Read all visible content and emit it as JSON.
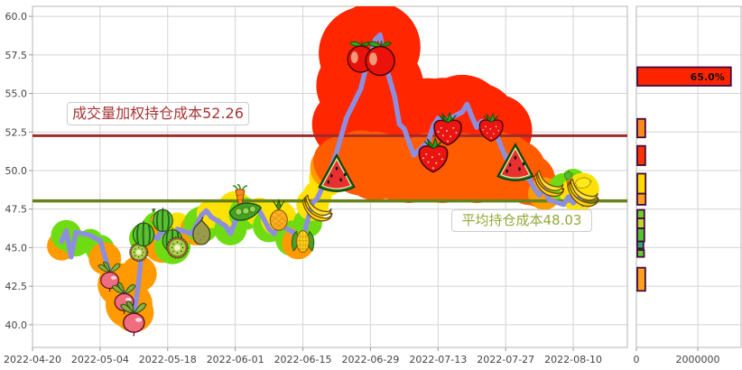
{
  "chart_data": {
    "type": "line",
    "title": "",
    "x_ticks": [
      "2022-04-20",
      "2022-05-04",
      "2022-05-18",
      "2022-06-01",
      "2022-06-15",
      "2022-06-29",
      "2022-07-13",
      "2022-07-27",
      "2022-08-10"
    ],
    "y_ticks": [
      "60.0",
      "57.5",
      "55.0",
      "52.5",
      "50.0",
      "47.5",
      "45.0",
      "42.5",
      "40.0"
    ],
    "axis": {
      "x_start": "2022-04-20",
      "x_span_days": 123.2,
      "ylim": [
        38.53,
        60.65
      ],
      "grid": true
    },
    "line_color": "#8e8ede",
    "price_series": [
      [
        "2022-04-26",
        45.4
      ],
      [
        "2022-04-27",
        46.1
      ],
      [
        "2022-04-28",
        44.4
      ],
      [
        "2022-04-29",
        46.0
      ],
      [
        "2022-05-02",
        45.8
      ],
      [
        "2022-05-03",
        45.6
      ],
      [
        "2022-05-04",
        45.5
      ],
      [
        "2022-05-05",
        44.4
      ],
      [
        "2022-05-06",
        43.4
      ],
      [
        "2022-05-09",
        42.0
      ],
      [
        "2022-05-10",
        41.3
      ],
      [
        "2022-05-11",
        40.6
      ],
      [
        "2022-05-12",
        42.8
      ],
      [
        "2022-05-13",
        46.0
      ],
      [
        "2022-05-16",
        45.6
      ],
      [
        "2022-05-17",
        46.4
      ],
      [
        "2022-05-18",
        45.4
      ],
      [
        "2022-05-19",
        45.8
      ],
      [
        "2022-05-20",
        46.2
      ],
      [
        "2022-05-23",
        45.9
      ],
      [
        "2022-05-24",
        46.5
      ],
      [
        "2022-05-25",
        47.1
      ],
      [
        "2022-05-26",
        47.4
      ],
      [
        "2022-05-27",
        47.0
      ],
      [
        "2022-05-30",
        46.4
      ],
      [
        "2022-05-31",
        45.9
      ],
      [
        "2022-06-01",
        46.7
      ],
      [
        "2022-06-02",
        47.8
      ],
      [
        "2022-06-03",
        47.2
      ],
      [
        "2022-06-06",
        47.4
      ],
      [
        "2022-06-07",
        46.8
      ],
      [
        "2022-06-08",
        46.2
      ],
      [
        "2022-06-09",
        45.9
      ],
      [
        "2022-06-10",
        46.5
      ],
      [
        "2022-06-13",
        46.0
      ],
      [
        "2022-06-14",
        45.2
      ],
      [
        "2022-06-15",
        45.6
      ],
      [
        "2022-06-16",
        46.8
      ],
      [
        "2022-06-17",
        47.9
      ],
      [
        "2022-06-18",
        48.2
      ],
      [
        "2022-06-20",
        49.6
      ],
      [
        "2022-06-21",
        50.3
      ],
      [
        "2022-06-22",
        51.2
      ],
      [
        "2022-06-23",
        52.3
      ],
      [
        "2022-06-24",
        53.4
      ],
      [
        "2022-06-27",
        55.3
      ],
      [
        "2022-06-28",
        56.6
      ],
      [
        "2022-06-29",
        57.5
      ],
      [
        "2022-06-30",
        58.5
      ],
      [
        "2022-07-01",
        58.8
      ],
      [
        "2022-07-02",
        57.0
      ],
      [
        "2022-07-04",
        54.8
      ],
      [
        "2022-07-05",
        53.0
      ],
      [
        "2022-07-06",
        52.7
      ],
      [
        "2022-07-07",
        51.8
      ],
      [
        "2022-07-08",
        51.0
      ],
      [
        "2022-07-11",
        51.9
      ],
      [
        "2022-07-12",
        52.9
      ],
      [
        "2022-07-13",
        53.4
      ],
      [
        "2022-07-14",
        53.0
      ],
      [
        "2022-07-15",
        53.3
      ],
      [
        "2022-07-18",
        53.8
      ],
      [
        "2022-07-19",
        54.3
      ],
      [
        "2022-07-20",
        53.5
      ],
      [
        "2022-07-21",
        52.8
      ],
      [
        "2022-07-22",
        53.2
      ],
      [
        "2022-07-25",
        52.4
      ],
      [
        "2022-07-26",
        51.6
      ],
      [
        "2022-07-27",
        50.9
      ],
      [
        "2022-07-28",
        50.2
      ],
      [
        "2022-07-29",
        49.9
      ],
      [
        "2022-08-01",
        49.4
      ],
      [
        "2022-08-02",
        48.8
      ],
      [
        "2022-08-03",
        48.4
      ],
      [
        "2022-08-04",
        48.8
      ],
      [
        "2022-08-05",
        48.1
      ],
      [
        "2022-08-08",
        47.8
      ],
      [
        "2022-08-09",
        48.3
      ],
      [
        "2022-08-10",
        47.9
      ],
      [
        "2022-08-11",
        48.2
      ],
      [
        "2022-08-12",
        47.8
      ]
    ],
    "cost_lines": [
      {
        "label": "成交量加权持仓成本52.26",
        "value": 52.26,
        "color": "#a83434",
        "line_color": "#9e2c2c",
        "line_width": 3
      },
      {
        "label": "平均持仓成本48.03",
        "value": 48.03,
        "color": "#93a83a",
        "line_color": "#66821a",
        "line_width": 3.5
      }
    ],
    "palette": {
      "green": "#6fdc13",
      "orange": "#ff9a00",
      "yellow": "#ffe205",
      "red": "#ff2600",
      "orangered": "#ff5c00"
    },
    "heat_blobs": [
      [
        "2022-04-26",
        45.1,
        16,
        "orange"
      ],
      [
        "2022-04-27",
        45.8,
        17,
        "green"
      ],
      [
        "2022-04-29",
        45.3,
        15,
        "green"
      ],
      [
        "2022-05-02",
        45.4,
        14,
        "green"
      ],
      [
        "2022-05-04",
        44.9,
        16,
        "green"
      ],
      [
        "2022-05-05",
        44.3,
        18,
        "orange"
      ],
      [
        "2022-05-08",
        42.6,
        24,
        "orange"
      ],
      [
        "2022-05-10",
        41.3,
        26,
        "orange"
      ],
      [
        "2022-05-11",
        40.8,
        22,
        "orange"
      ],
      [
        "2022-05-12",
        43.3,
        20,
        "orange"
      ],
      [
        "2022-05-13",
        45.6,
        16,
        "green"
      ],
      [
        "2022-05-16",
        46.3,
        18,
        "green"
      ],
      [
        "2022-05-17",
        45.3,
        22,
        "orange"
      ],
      [
        "2022-05-19",
        45.1,
        20,
        "green"
      ],
      [
        "2022-05-20",
        46.4,
        15,
        "yellow"
      ],
      [
        "2022-05-24",
        46.2,
        18,
        "orange"
      ],
      [
        "2022-05-25",
        46.5,
        20,
        "green"
      ],
      [
        "2022-05-27",
        47.2,
        16,
        "yellow"
      ],
      [
        "2022-05-31",
        46.2,
        18,
        "green"
      ],
      [
        "2022-06-01",
        47.5,
        20,
        "yellow"
      ],
      [
        "2022-06-03",
        47.2,
        18,
        "green"
      ],
      [
        "2022-06-06",
        47.3,
        16,
        "yellow"
      ],
      [
        "2022-06-08",
        46.4,
        18,
        "green"
      ],
      [
        "2022-06-10",
        46.9,
        20,
        "yellow"
      ],
      [
        "2022-06-13",
        45.6,
        20,
        "green"
      ],
      [
        "2022-06-14",
        45.3,
        18,
        "orange"
      ],
      [
        "2022-06-16",
        46.6,
        16,
        "green"
      ],
      [
        "2022-06-17",
        47.8,
        18,
        "yellow"
      ],
      [
        "2022-06-18",
        48.4,
        16,
        "yellow"
      ],
      [
        "2022-06-20",
        49.5,
        20,
        "yellow"
      ],
      [
        "2022-06-21",
        50.2,
        24,
        "orange"
      ],
      [
        "2022-06-22",
        50.6,
        26,
        "orangered"
      ],
      [
        "2022-06-24",
        53.0,
        38,
        "red"
      ],
      [
        "2022-06-26",
        55.5,
        44,
        "red"
      ],
      [
        "2022-06-28",
        57.6,
        52,
        "red"
      ],
      [
        "2022-06-30",
        58.0,
        50,
        "red"
      ],
      [
        "2022-07-01",
        55.5,
        48,
        "red"
      ],
      [
        "2022-07-04",
        53.0,
        44,
        "red"
      ],
      [
        "2022-07-07",
        52.3,
        42,
        "red"
      ],
      [
        "2022-07-11",
        53.3,
        46,
        "red"
      ],
      [
        "2022-07-14",
        53.2,
        48,
        "red"
      ],
      [
        "2022-07-18",
        53.4,
        48,
        "red"
      ],
      [
        "2022-07-21",
        53.0,
        46,
        "red"
      ],
      [
        "2022-07-25",
        52.6,
        40,
        "red"
      ],
      [
        "2022-06-23",
        50.5,
        30,
        "orangered"
      ],
      [
        "2022-06-27",
        50.5,
        36,
        "orangered"
      ],
      [
        "2022-06-30",
        50.3,
        38,
        "orangered"
      ],
      [
        "2022-07-04",
        50.2,
        36,
        "orangered"
      ],
      [
        "2022-07-07",
        50.0,
        36,
        "orangered"
      ],
      [
        "2022-07-11",
        50.2,
        38,
        "orangered"
      ],
      [
        "2022-07-14",
        50.0,
        36,
        "orangered"
      ],
      [
        "2022-07-18",
        50.2,
        38,
        "orangered"
      ],
      [
        "2022-07-21",
        50.0,
        36,
        "orangered"
      ],
      [
        "2022-07-25",
        50.3,
        38,
        "orangered"
      ],
      [
        "2022-07-27",
        50.4,
        34,
        "orangered"
      ],
      [
        "2022-07-29",
        50.0,
        34,
        "orangered"
      ],
      [
        "2022-08-01",
        49.4,
        28,
        "orangered"
      ],
      [
        "2022-08-03",
        48.9,
        22,
        "orangered"
      ],
      [
        "2022-08-04",
        48.5,
        18,
        "orange"
      ],
      [
        "2022-08-08",
        48.9,
        16,
        "green"
      ],
      [
        "2022-08-10",
        49.3,
        14,
        "green"
      ],
      [
        "2022-08-11",
        48.5,
        20,
        "yellow"
      ],
      [
        "2022-08-12",
        48.8,
        18,
        "yellow"
      ]
    ],
    "fruit_markers": [
      [
        "radish",
        "2022-05-06",
        43.2,
        36
      ],
      [
        "radish",
        "2022-05-09",
        41.8,
        38
      ],
      [
        "radish",
        "2022-05-11",
        40.5,
        42
      ],
      [
        "kiwi",
        "2022-05-12",
        44.7,
        26
      ],
      [
        "melon",
        "2022-05-13",
        45.9,
        32
      ],
      [
        "mango",
        "2022-05-16",
        47.0,
        26
      ],
      [
        "melon",
        "2022-05-17",
        46.8,
        30
      ],
      [
        "melon",
        "2022-05-19",
        45.5,
        30
      ],
      [
        "kiwi",
        "2022-05-20",
        45.0,
        30
      ],
      [
        "pear",
        "2022-05-25",
        46.1,
        34
      ],
      [
        "carrot",
        "2022-06-02",
        48.2,
        32
      ],
      [
        "peas",
        "2022-06-03",
        47.3,
        40
      ],
      [
        "pineapple",
        "2022-06-10",
        47.1,
        36
      ],
      [
        "corn",
        "2022-06-15",
        45.4,
        32
      ],
      [
        "banana",
        "2022-06-18",
        47.6,
        36
      ],
      [
        "watermelon",
        "2022-06-22",
        49.8,
        46
      ],
      [
        "apple",
        "2022-06-27",
        57.4,
        40
      ],
      [
        "apple",
        "2022-07-01",
        57.3,
        44
      ],
      [
        "strawberry",
        "2022-07-12",
        51.0,
        44
      ],
      [
        "strawberry",
        "2022-07-15",
        52.7,
        42
      ],
      [
        "strawberry",
        "2022-07-24",
        52.8,
        36
      ],
      [
        "watermelon",
        "2022-07-29",
        50.5,
        46
      ],
      [
        "banana",
        "2022-08-05",
        49.2,
        36
      ],
      [
        "carrot",
        "2022-08-09",
        49.3,
        20
      ],
      [
        "apple-green",
        "2022-08-09",
        49.7,
        13
      ],
      [
        "lemon",
        "2022-08-12",
        49.2,
        24
      ],
      [
        "banana",
        "2022-08-12",
        48.6,
        38
      ]
    ],
    "volume_panel": {
      "x_ticks": [
        "0",
        "2000000"
      ],
      "xmax": 3410000,
      "grid_at": 2000000,
      "bar_border": "#3d0a3d",
      "bars": [
        {
          "from": 56.7,
          "to": 55.5,
          "volume": 3050000,
          "color": "#ff2400",
          "label": "65.0%"
        },
        {
          "from": 53.35,
          "to": 52.15,
          "volume": 260000,
          "color": "#ff8c1a",
          "label": ""
        },
        {
          "from": 51.6,
          "to": 50.35,
          "volume": 260000,
          "color": "#ff3300",
          "label": ""
        },
        {
          "from": 49.8,
          "to": 48.5,
          "volume": 270000,
          "color": "#ffd900",
          "label": ""
        },
        {
          "from": 48.5,
          "to": 47.78,
          "volume": 270000,
          "color": "#ffa01e",
          "label": ""
        },
        {
          "from": 47.45,
          "to": 46.9,
          "volume": 230000,
          "color": "#6fcf2a",
          "label": ""
        },
        {
          "from": 46.9,
          "to": 46.25,
          "volume": 230000,
          "color": "#bcd92a",
          "label": ""
        },
        {
          "from": 46.25,
          "to": 45.4,
          "volume": 230000,
          "color": "#52c433",
          "label": ""
        },
        {
          "from": 45.4,
          "to": 44.95,
          "volume": 200000,
          "color": "#2fa864",
          "label": ""
        },
        {
          "from": 44.85,
          "to": 44.4,
          "volume": 220000,
          "color": "#63cc2e",
          "label": ""
        },
        {
          "from": 43.7,
          "to": 42.2,
          "volume": 260000,
          "color": "#ffa01e",
          "label": ""
        }
      ]
    },
    "style": {
      "grid_color": "#d4d4d4",
      "border_color": "#b5b5b5",
      "tick_text_color": "#444444"
    }
  }
}
